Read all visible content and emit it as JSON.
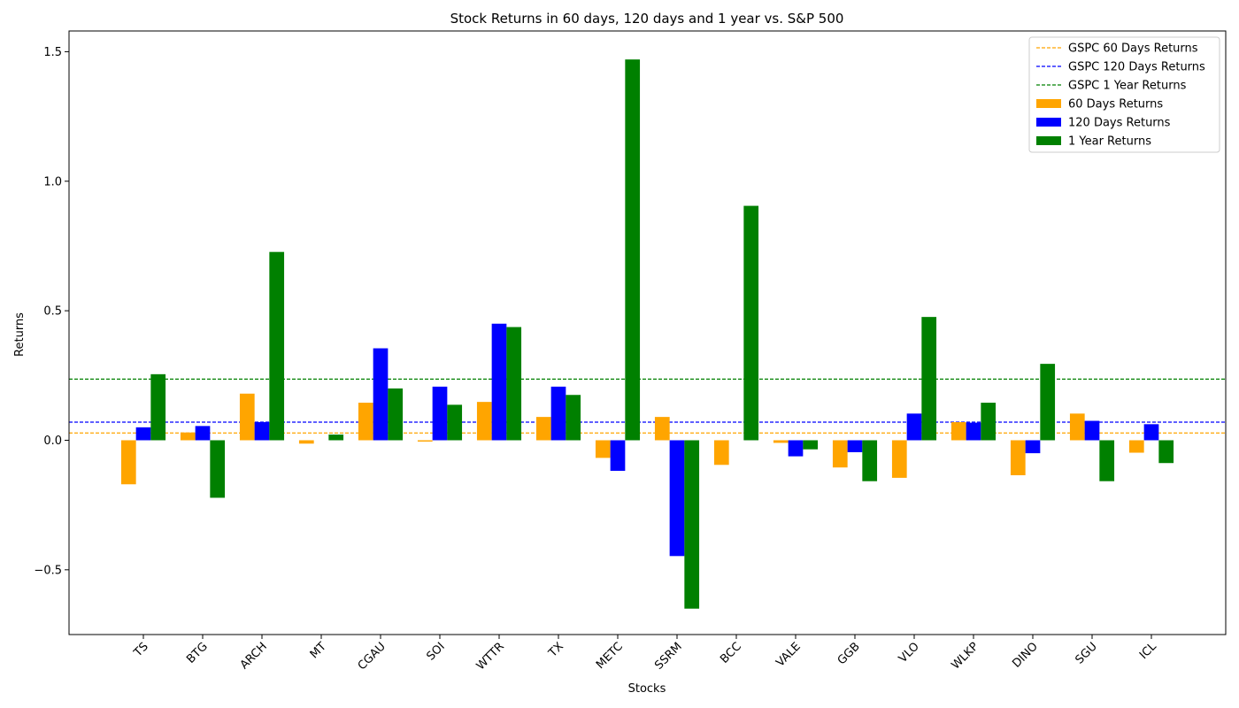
{
  "chart_data": {
    "type": "bar",
    "title": "Stock Returns in 60 days, 120 days and 1 year vs. S&P 500",
    "xlabel": "Stocks",
    "ylabel": "Returns",
    "ylim": [
      -0.75,
      1.58
    ],
    "yticks": [
      -0.5,
      0.0,
      0.5,
      1.0,
      1.5
    ],
    "ytick_labels": [
      "−0.5",
      "0.0",
      "0.5",
      "1.0",
      "1.5"
    ],
    "grid": false,
    "legend_position": "top-right",
    "categories": [
      "TS",
      "BTG",
      "ARCH",
      "MT",
      "CGAU",
      "SOI",
      "WTTR",
      "TX",
      "METC",
      "SSRM",
      "BCC",
      "VALE",
      "GGB",
      "VLO",
      "WLKP",
      "DINO",
      "SGU",
      "ICL"
    ],
    "series": [
      {
        "name": "60 Days Returns",
        "color": "#ffa500",
        "values": [
          -0.17,
          0.03,
          0.18,
          -0.013,
          0.145,
          -0.005,
          0.148,
          0.09,
          -0.068,
          0.09,
          -0.095,
          -0.01,
          -0.105,
          -0.145,
          0.07,
          -0.135,
          0.103,
          -0.048
        ]
      },
      {
        "name": "120 Days Returns",
        "color": "#0000ff",
        "values": [
          0.05,
          0.055,
          0.07,
          0.0,
          0.355,
          0.207,
          0.45,
          0.207,
          -0.118,
          -0.447,
          0.0,
          -0.062,
          -0.046,
          0.103,
          0.068,
          -0.05,
          0.075,
          0.062
        ]
      },
      {
        "name": "1 Year Returns",
        "color": "#008000",
        "values": [
          0.255,
          -0.222,
          0.727,
          0.022,
          0.2,
          0.137,
          0.437,
          0.175,
          1.47,
          -0.65,
          0.905,
          -0.035,
          -0.158,
          0.476,
          0.145,
          0.295,
          -0.158,
          -0.088
        ]
      }
    ],
    "reference_lines": [
      {
        "name": "GSPC 60 Days Returns",
        "color": "#ffa500",
        "value": 0.028,
        "style": "dashed"
      },
      {
        "name": "GSPC 120 Days Returns",
        "color": "#0000ff",
        "value": 0.07,
        "style": "dashed"
      },
      {
        "name": "GSPC 1 Year Returns",
        "color": "#008000",
        "value": 0.236,
        "style": "dashed"
      }
    ]
  }
}
